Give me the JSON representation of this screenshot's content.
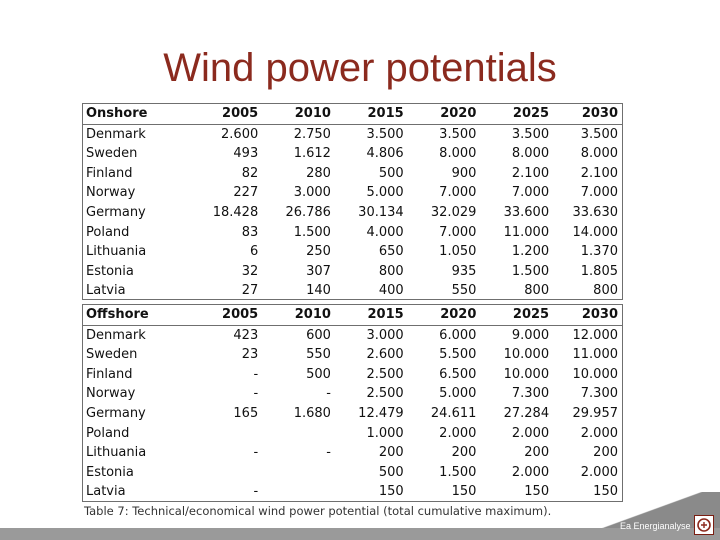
{
  "title": "Wind power potentials",
  "onshore": {
    "header": [
      "Onshore",
      "2005",
      "2010",
      "2015",
      "2020",
      "2025",
      "2030"
    ],
    "rows": [
      [
        "Denmark",
        "2.600",
        "2.750",
        "3.500",
        "3.500",
        "3.500",
        "3.500"
      ],
      [
        "Sweden",
        "493",
        "1.612",
        "4.806",
        "8.000",
        "8.000",
        "8.000"
      ],
      [
        "Finland",
        "82",
        "280",
        "500",
        "900",
        "2.100",
        "2.100"
      ],
      [
        "Norway",
        "227",
        "3.000",
        "5.000",
        "7.000",
        "7.000",
        "7.000"
      ],
      [
        "Germany",
        "18.428",
        "26.786",
        "30.134",
        "32.029",
        "33.600",
        "33.630"
      ],
      [
        "Poland",
        "83",
        "1.500",
        "4.000",
        "7.000",
        "11.000",
        "14.000"
      ],
      [
        "Lithuania",
        "6",
        "250",
        "650",
        "1.050",
        "1.200",
        "1.370"
      ],
      [
        "Estonia",
        "32",
        "307",
        "800",
        "935",
        "1.500",
        "1.805"
      ],
      [
        "Latvia",
        "27",
        "140",
        "400",
        "550",
        "800",
        "800"
      ]
    ]
  },
  "offshore": {
    "header": [
      "Offshore",
      "2005",
      "2010",
      "2015",
      "2020",
      "2025",
      "2030"
    ],
    "rows": [
      [
        "Denmark",
        "423",
        "600",
        "3.000",
        "6.000",
        "9.000",
        "12.000"
      ],
      [
        "Sweden",
        "23",
        "550",
        "2.600",
        "5.500",
        "10.000",
        "11.000"
      ],
      [
        "Finland",
        "-",
        "500",
        "2.500",
        "6.500",
        "10.000",
        "10.000"
      ],
      [
        "Norway",
        "-",
        "-",
        "2.500",
        "5.000",
        "7.300",
        "7.300"
      ],
      [
        "Germany",
        "165",
        "1.680",
        "12.479",
        "24.611",
        "27.284",
        "29.957"
      ],
      [
        "Poland",
        "",
        "",
        "1.000",
        "2.000",
        "2.000",
        "2.000"
      ],
      [
        "Lithuania",
        "-",
        "-",
        "200",
        "200",
        "200",
        "200"
      ],
      [
        "Estonia",
        "",
        "",
        "500",
        "1.500",
        "2.000",
        "2.000"
      ],
      [
        "Latvia",
        "-",
        "",
        "150",
        "150",
        "150",
        "150"
      ]
    ]
  },
  "caption": "Table 7: Technical/economical wind power potential (total cumulative maximum).",
  "footer": {
    "brand": "Ea Energianalyse",
    "accent": "#8b2a1e"
  }
}
